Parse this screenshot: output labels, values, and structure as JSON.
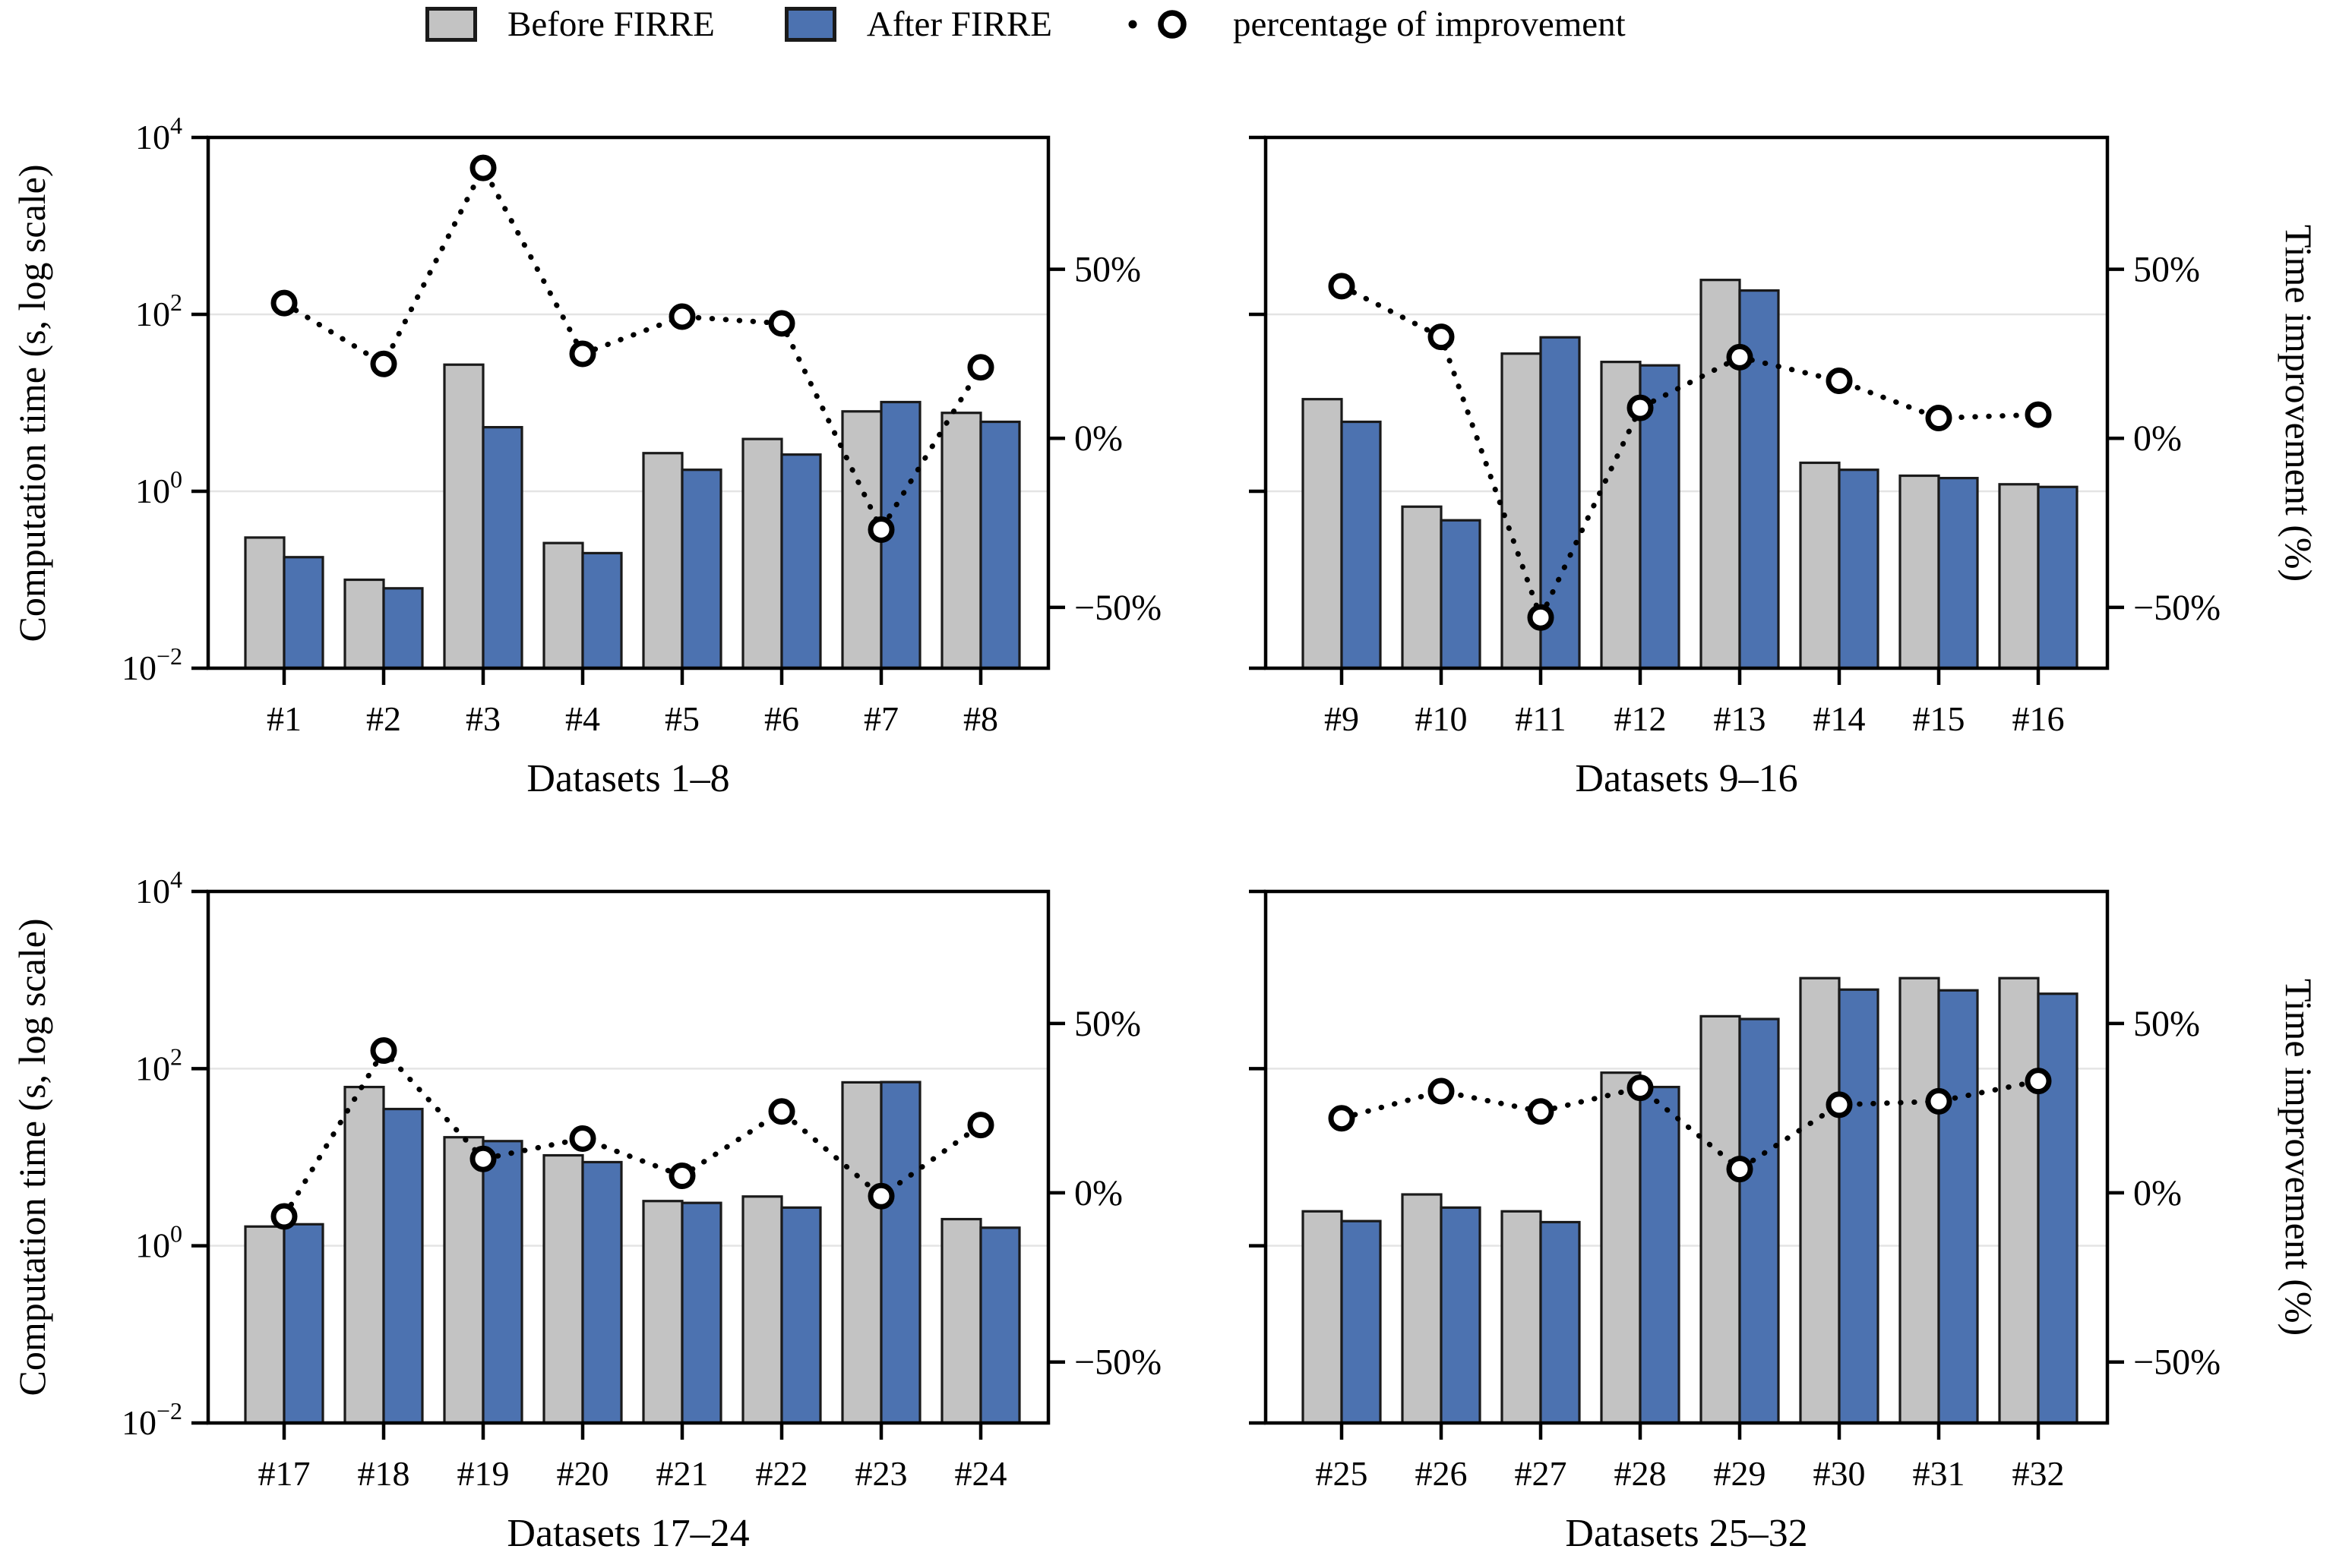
{
  "figure": {
    "left_axis_label": "Computation time (s, log scale)",
    "right_axis_label": "Time improvement (%)"
  },
  "legend": {
    "items": [
      {
        "type": "swatch-before",
        "label": "Before FIRRE"
      },
      {
        "type": "swatch-after",
        "label": "After FIRRE"
      },
      {
        "type": "line-marker",
        "label": "percentage of improvement"
      }
    ]
  },
  "colors": {
    "before": "#c3c3c3",
    "after": "#4c72b0",
    "edge": "#1a1a1a",
    "grid": "#e4e4e4",
    "axis": "#000000",
    "line": "#000000",
    "marker_fill": "#ffffff"
  },
  "axes": {
    "log_ticks": [
      {
        "exp": "4",
        "value": 10000
      },
      {
        "exp": "2",
        "value": 100
      },
      {
        "exp": "0",
        "value": 1
      },
      {
        "exp": "−2",
        "value": 0.01
      }
    ],
    "grid_values": [
      100,
      1
    ],
    "pct_ticks": [
      {
        "label": "50%",
        "value": 50
      },
      {
        "label": "0%",
        "value": 0
      },
      {
        "label": "−50%",
        "value": -50
      }
    ],
    "ylim_log": [
      0.01,
      10000
    ],
    "ylim_pct": [
      -68,
      89
    ],
    "grid_on": true,
    "legend_position": "top-center"
  },
  "chart_data": [
    {
      "type": "bar+line",
      "xlabel": "Datasets 1–8",
      "categories": [
        "#1",
        "#2",
        "#3",
        "#4",
        "#5",
        "#6",
        "#7",
        "#8"
      ],
      "series": [
        {
          "name": "Before FIRRE",
          "axis": "log",
          "values": [
            0.3,
            0.1,
            27,
            0.26,
            2.7,
            3.9,
            8,
            7.7
          ]
        },
        {
          "name": "After FIRRE",
          "axis": "log",
          "values": [
            0.18,
            0.08,
            5.3,
            0.2,
            1.75,
            2.6,
            10.2,
            6.1
          ]
        },
        {
          "name": "percentage of improvement",
          "axis": "pct",
          "values": [
            40,
            22,
            80,
            25,
            36,
            34,
            -27,
            21
          ]
        }
      ]
    },
    {
      "type": "bar+line",
      "xlabel": "Datasets 9–16",
      "categories": [
        "#9",
        "#10",
        "#11",
        "#12",
        "#13",
        "#14",
        "#15",
        "#16"
      ],
      "series": [
        {
          "name": "Before FIRRE",
          "axis": "log",
          "values": [
            11,
            0.67,
            36,
            29,
            245,
            2.1,
            1.5,
            1.2
          ]
        },
        {
          "name": "After FIRRE",
          "axis": "log",
          "values": [
            6.1,
            0.47,
            55,
            26.5,
            186,
            1.75,
            1.41,
            1.12
          ]
        },
        {
          "name": "percentage of improvement",
          "axis": "pct",
          "values": [
            45,
            30,
            -53,
            9,
            24,
            17,
            6,
            7
          ]
        }
      ]
    },
    {
      "type": "bar+line",
      "xlabel": "Datasets 17–24",
      "categories": [
        "#17",
        "#18",
        "#19",
        "#20",
        "#21",
        "#22",
        "#23",
        "#24"
      ],
      "series": [
        {
          "name": "Before FIRRE",
          "axis": "log",
          "values": [
            1.65,
            62,
            16.8,
            10.5,
            3.2,
            3.6,
            70,
            2
          ]
        },
        {
          "name": "After FIRRE",
          "axis": "log",
          "values": [
            1.75,
            35,
            15.2,
            8.8,
            3.05,
            2.7,
            70.5,
            1.6
          ]
        },
        {
          "name": "percentage of improvement",
          "axis": "pct",
          "values": [
            -7,
            42,
            10,
            16,
            5,
            24,
            -1,
            20
          ]
        }
      ]
    },
    {
      "type": "bar+line",
      "xlabel": "Datasets 25–32",
      "categories": [
        "#25",
        "#26",
        "#27",
        "#28",
        "#29",
        "#30",
        "#31",
        "#32"
      ],
      "series": [
        {
          "name": "Before FIRRE",
          "axis": "log",
          "values": [
            2.45,
            3.8,
            2.45,
            90,
            390,
            1050,
            1050,
            1050
          ]
        },
        {
          "name": "After FIRRE",
          "axis": "log",
          "values": [
            1.9,
            2.7,
            1.85,
            62,
            363,
            780,
            765,
            700
          ]
        },
        {
          "name": "percentage of improvement",
          "axis": "pct",
          "values": [
            22,
            30,
            24,
            31,
            7,
            26,
            27,
            33
          ]
        }
      ]
    }
  ]
}
